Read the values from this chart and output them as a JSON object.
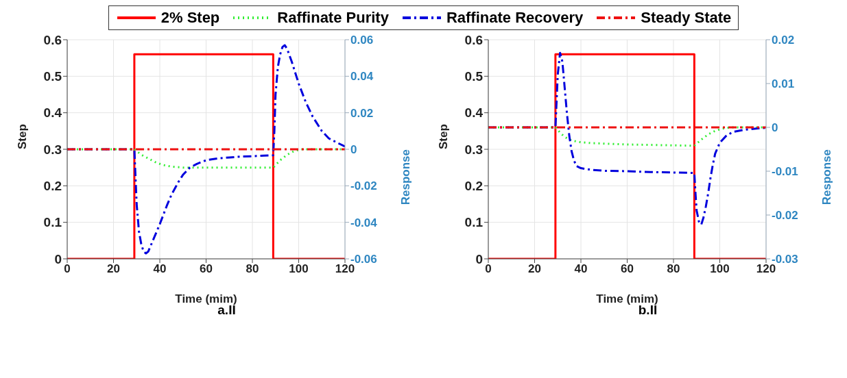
{
  "chart_data": [
    {
      "type": "line",
      "xlabel": "Time (mim)",
      "ylabel": "Step",
      "y2label": "Response",
      "annotations": [
        "a.II"
      ],
      "xlim": [
        0,
        120
      ],
      "xticks": [
        0,
        20,
        40,
        60,
        80,
        100,
        120
      ],
      "ylim": [
        0,
        0.6
      ],
      "yticks": [
        0,
        0.1,
        0.2,
        0.3,
        0.4,
        0.5,
        0.6
      ],
      "y2lim": [
        -0.06,
        0.06
      ],
      "y2ticks": [
        -0.06,
        -0.04,
        -0.02,
        0,
        0.02,
        0.04,
        0.06
      ],
      "grid": true,
      "legend": "top",
      "marker": "none",
      "series": [
        {
          "name": "2% Step",
          "type": "step",
          "color": "#ff0000",
          "line_style": "solid",
          "x": [
            0,
            29,
            89,
            120
          ],
          "values": [
            0,
            0.56,
            0,
            0
          ]
        },
        {
          "name": "Raffinate Purity",
          "color": "#33ee33",
          "line_style": "dotted",
          "axis": "y2",
          "x": [
            0,
            29,
            32,
            35,
            38,
            41,
            45,
            50,
            60,
            70,
            80,
            89,
            92,
            95,
            98,
            101,
            105,
            120
          ],
          "values": [
            0,
            0,
            -0.003,
            -0.005,
            -0.007,
            -0.0085,
            -0.0095,
            -0.01,
            -0.01,
            -0.01,
            -0.01,
            -0.01,
            -0.006,
            -0.003,
            -0.001,
            0,
            0,
            0
          ]
        },
        {
          "name": "Raffinate Recovery",
          "color": "#0000dd",
          "line_style": "dashed",
          "axis": "y2",
          "x": [
            0,
            29,
            30,
            31,
            32,
            33,
            34,
            35,
            37,
            40,
            43,
            45,
            48,
            50,
            53,
            56,
            60,
            65,
            70,
            75,
            80,
            85,
            89,
            89.5,
            90,
            91,
            92,
            93,
            94,
            95,
            97,
            100,
            103,
            106,
            110,
            113,
            116,
            120
          ],
          "values": [
            0,
            0,
            -0.03,
            -0.045,
            -0.052,
            -0.056,
            -0.057,
            -0.056,
            -0.05,
            -0.041,
            -0.031,
            -0.025,
            -0.018,
            -0.014,
            -0.01,
            -0.008,
            -0.006,
            -0.005,
            -0.0045,
            -0.004,
            -0.0038,
            -0.0035,
            -0.0033,
            0.01,
            0.03,
            0.045,
            0.052,
            0.056,
            0.057,
            0.055,
            0.048,
            0.036,
            0.026,
            0.018,
            0.01,
            0.006,
            0.004,
            0.0015
          ]
        },
        {
          "name": "Steady State",
          "color": "#ee1111",
          "line_style": "dashed",
          "axis": "y2",
          "x": [
            0,
            120
          ],
          "values": [
            0,
            0
          ]
        }
      ]
    },
    {
      "type": "line",
      "xlabel": "Time (mim)",
      "ylabel": "Step",
      "y2label": "Response",
      "annotations": [
        "b.II"
      ],
      "xlim": [
        0,
        120
      ],
      "xticks": [
        0,
        20,
        40,
        60,
        80,
        100,
        120
      ],
      "ylim": [
        0,
        0.6
      ],
      "yticks": [
        0,
        0.1,
        0.2,
        0.3,
        0.4,
        0.5,
        0.6
      ],
      "y2lim": [
        -0.03,
        0.02
      ],
      "y2ticks": [
        -0.03,
        -0.02,
        -0.01,
        0,
        0.01,
        0.02
      ],
      "grid": true,
      "marker": "none",
      "series": [
        {
          "type": "step",
          "color": "#ff0000",
          "line_style": "solid",
          "x": [
            0,
            29,
            89,
            120
          ],
          "values": [
            0,
            0.56,
            0,
            0
          ]
        },
        {
          "color": "#33ee33",
          "line_style": "dotted",
          "axis": "y2",
          "x": [
            0,
            29,
            31,
            33,
            36,
            40,
            45,
            50,
            60,
            70,
            80,
            89,
            92,
            95,
            98,
            101,
            105,
            120
          ],
          "values": [
            0,
            0,
            -0.0012,
            -0.0022,
            -0.003,
            -0.0034,
            -0.0036,
            -0.0037,
            -0.0039,
            -0.004,
            -0.0041,
            -0.0042,
            -0.0028,
            -0.0016,
            -0.0008,
            -0.0003,
            0,
            0
          ]
        },
        {
          "color": "#0000dd",
          "line_style": "dashed",
          "axis": "y2",
          "x": [
            0,
            29,
            30,
            31,
            32,
            33,
            34,
            35,
            36,
            37,
            38,
            40,
            42,
            45,
            50,
            60,
            70,
            80,
            89,
            89.5,
            90,
            91,
            92,
            93,
            94,
            95,
            96,
            97,
            98,
            100,
            103,
            106,
            110,
            115,
            120
          ],
          "values": [
            0,
            0,
            0.012,
            0.017,
            0.015,
            0.009,
            0.003,
            -0.002,
            -0.0055,
            -0.0075,
            -0.0088,
            -0.0093,
            -0.0095,
            -0.0097,
            -0.0099,
            -0.01,
            -0.0102,
            -0.0103,
            -0.0104,
            -0.015,
            -0.019,
            -0.0215,
            -0.0222,
            -0.0205,
            -0.018,
            -0.015,
            -0.0115,
            -0.0085,
            -0.006,
            -0.0035,
            -0.0018,
            -0.001,
            -0.0006,
            -0.0003,
            -0.0001
          ]
        },
        {
          "color": "#ee1111",
          "line_style": "dashed",
          "axis": "y2",
          "x": [
            0,
            120
          ],
          "values": [
            0,
            0
          ]
        }
      ]
    }
  ]
}
